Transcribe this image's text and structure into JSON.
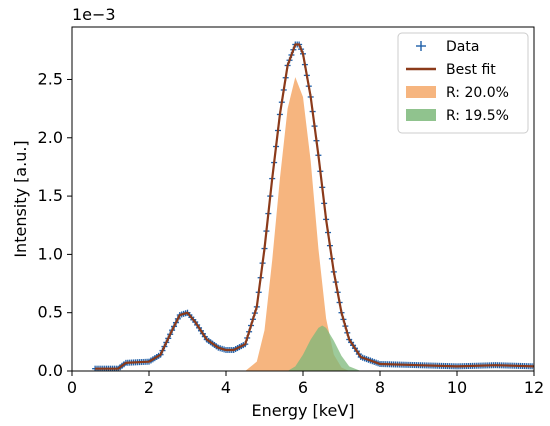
{
  "chart_data": {
    "type": "line",
    "xlabel": "Energy [keV]",
    "ylabel": "Intensity [a.u.]",
    "y_scale_label": "1e−3",
    "xlim": [
      0,
      12
    ],
    "ylim": [
      0,
      2.95
    ],
    "x_ticks": [
      0,
      2,
      4,
      6,
      8,
      10,
      12
    ],
    "y_ticks": [
      0.0,
      0.5,
      1.0,
      1.5,
      2.0,
      2.5
    ],
    "grid": false,
    "legend_position": "top-right",
    "colors": {
      "data": "#1f5fa8",
      "best_fit": "#8b3a1a",
      "peak_1": "#f5a868",
      "peak_2": "#7cb87a"
    },
    "legend": [
      {
        "label": "Data",
        "marker": "plus",
        "color": "#1f5fa8"
      },
      {
        "label": "Best fit",
        "marker": "line",
        "color": "#8b3a1a"
      },
      {
        "label": "R: 20.0%",
        "marker": "patch",
        "color": "#f5a868"
      },
      {
        "label": "R: 19.5%",
        "marker": "patch",
        "color": "#7cb87a"
      }
    ],
    "series": [
      {
        "name": "Best fit",
        "x": [
          0.6,
          1.2,
          1.4,
          2.0,
          2.3,
          2.6,
          2.8,
          3.0,
          3.2,
          3.5,
          3.8,
          4.0,
          4.2,
          4.5,
          4.8,
          5.0,
          5.2,
          5.4,
          5.6,
          5.8,
          5.9,
          6.0,
          6.2,
          6.4,
          6.6,
          6.8,
          7.0,
          7.2,
          7.5,
          8.0,
          9.0,
          10.0,
          11.0,
          12.0
        ],
        "y": [
          0.02,
          0.02,
          0.07,
          0.08,
          0.14,
          0.35,
          0.48,
          0.5,
          0.42,
          0.27,
          0.2,
          0.18,
          0.18,
          0.23,
          0.55,
          1.05,
          1.65,
          2.2,
          2.62,
          2.8,
          2.8,
          2.72,
          2.35,
          1.85,
          1.3,
          0.85,
          0.5,
          0.27,
          0.12,
          0.06,
          0.05,
          0.04,
          0.05,
          0.04
        ]
      },
      {
        "name": "R: 20.0%",
        "x": [
          4.5,
          4.8,
          5.0,
          5.2,
          5.4,
          5.6,
          5.8,
          6.0,
          6.2,
          6.4,
          6.6,
          6.8,
          7.0,
          7.2
        ],
        "y": [
          0.0,
          0.08,
          0.35,
          0.95,
          1.65,
          2.25,
          2.52,
          2.35,
          1.8,
          1.05,
          0.45,
          0.14,
          0.03,
          0.0
        ]
      },
      {
        "name": "R: 19.5%",
        "x": [
          5.6,
          5.8,
          6.0,
          6.2,
          6.4,
          6.5,
          6.6,
          6.8,
          7.0,
          7.2,
          7.5
        ],
        "y": [
          0.0,
          0.04,
          0.14,
          0.27,
          0.37,
          0.39,
          0.37,
          0.26,
          0.13,
          0.04,
          0.0
        ]
      }
    ],
    "data_points": {
      "name": "Data",
      "x_start": 0.6,
      "x_end": 12.0,
      "x_step": 0.05
    }
  }
}
